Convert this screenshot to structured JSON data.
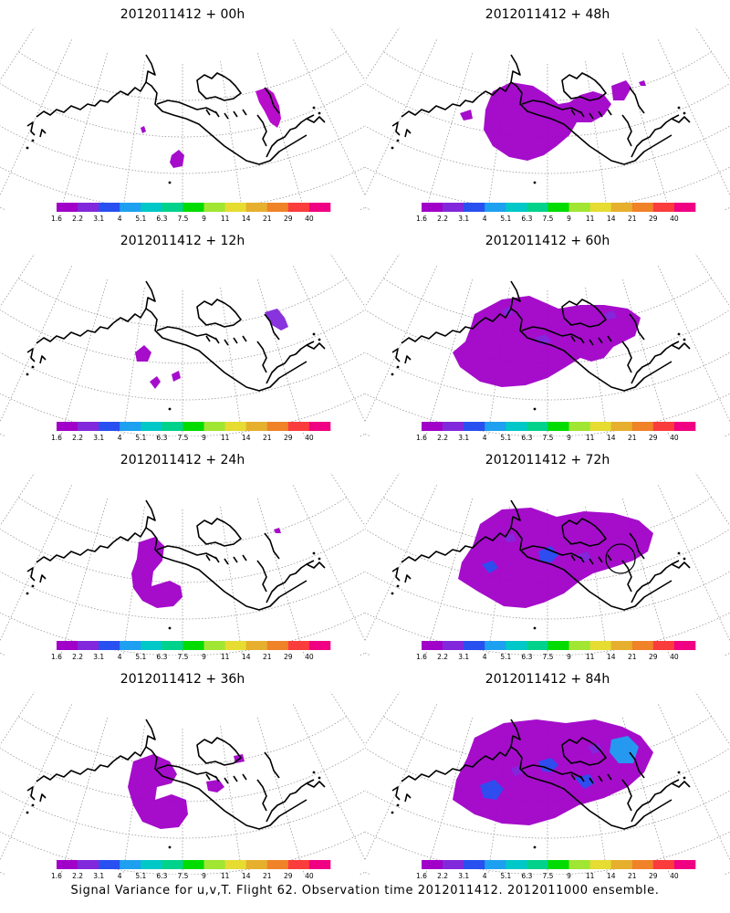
{
  "figure": {
    "caption": "Signal Variance for u,v,T. Flight 62. Observation time 2012011412. 2012011000 ensemble."
  },
  "panels": [
    {
      "title": "2012011412 + 00h",
      "lead_hours": 0,
      "column": "left",
      "row": 1
    },
    {
      "title": "2012011412 + 48h",
      "lead_hours": 48,
      "column": "right",
      "row": 1
    },
    {
      "title": "2012011412 + 12h",
      "lead_hours": 12,
      "column": "left",
      "row": 2
    },
    {
      "title": "2012011412 + 60h",
      "lead_hours": 60,
      "column": "right",
      "row": 2
    },
    {
      "title": "2012011412 + 24h",
      "lead_hours": 24,
      "column": "left",
      "row": 3
    },
    {
      "title": "2012011412 + 72h",
      "lead_hours": 72,
      "column": "right",
      "row": 3
    },
    {
      "title": "2012011412 + 36h",
      "lead_hours": 36,
      "column": "left",
      "row": 4
    },
    {
      "title": "2012011412 + 84h",
      "lead_hours": 84,
      "column": "right",
      "row": 4
    }
  ],
  "colorbar": {
    "labels": [
      "1.6",
      "2.2",
      "3.1",
      "4",
      "5.1",
      "6.3",
      "7.5",
      "9",
      "11",
      "14",
      "21",
      "29",
      "40"
    ],
    "colors": [
      "#a000c8",
      "#8228dc",
      "#2850f0",
      "#1ea0f0",
      "#00c8c8",
      "#00d28c",
      "#00dc00",
      "#a0e632",
      "#e6dc32",
      "#e6af2d",
      "#f08228",
      "#fa3c3c",
      "#f00082"
    ]
  },
  "chart_data": {
    "type": "heatmap",
    "title": "Signal Variance for u,v,T. Flight 62. Observation time 2012011412. 2012011000 ensemble.",
    "panels": [
      "2012011412 + 00h",
      "2012011412 + 12h",
      "2012011412 + 24h",
      "2012011412 + 36h",
      "2012011412 + 48h",
      "2012011412 + 60h",
      "2012011412 + 72h",
      "2012011412 + 84h"
    ],
    "legend_levels": [
      "1.6",
      "2.2",
      "3.1",
      "4",
      "5.1",
      "6.3",
      "7.5",
      "9",
      "11",
      "14",
      "21",
      "29",
      "40"
    ],
    "legend_placement": "below each panel",
    "grid": true
  }
}
